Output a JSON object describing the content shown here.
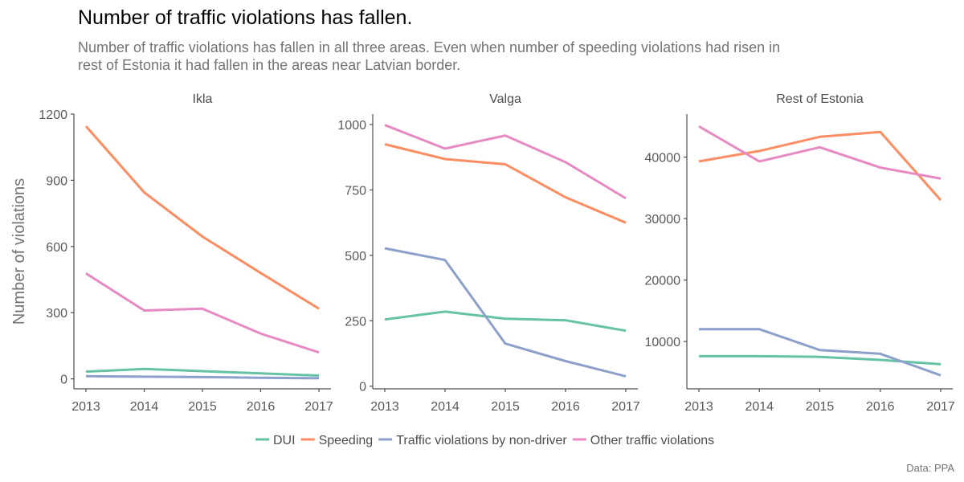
{
  "header": {
    "title": "Number of traffic violations has fallen.",
    "subtitle_lines": [
      "Number of traffic violations has fallen in all three areas. Even when number of speeding violations had risen in",
      "rest of Estonia it had fallen in the areas near Latvian border."
    ]
  },
  "caption": "Data: PPA",
  "colors": {
    "DUI": "#66c2a5",
    "Speeding": "#fc8d62",
    "Traffic violations by non-driver": "#8da0cb",
    "Other traffic violations": "#e78ac3"
  },
  "chart_data": {
    "type": "line",
    "ylabel": "Number of violations",
    "x": [
      2013,
      2014,
      2015,
      2016,
      2017
    ],
    "legend_position": "bottom",
    "legend": [
      "DUI",
      "Speeding",
      "Traffic violations by non-driver",
      "Other traffic violations"
    ],
    "facets": [
      {
        "name": "Ikla",
        "ylim": [
          -45,
          1200
        ],
        "yticks": [
          0,
          300,
          600,
          900,
          1200
        ],
        "series": [
          {
            "name": "DUI",
            "values": [
              33,
              45,
              35,
              25,
              15
            ]
          },
          {
            "name": "Speeding",
            "values": [
              1145,
              845,
              645,
              480,
              318
            ]
          },
          {
            "name": "Traffic violations by non-driver",
            "values": [
              12,
              10,
              8,
              5,
              3
            ]
          },
          {
            "name": "Other traffic violations",
            "values": [
              478,
              310,
              318,
              205,
              120
            ]
          }
        ]
      },
      {
        "name": "Valga",
        "ylim": [
          -10,
          1040
        ],
        "yticks": [
          0,
          250,
          500,
          750,
          1000
        ],
        "series": [
          {
            "name": "DUI",
            "values": [
              255,
              285,
              258,
              252,
              212
            ]
          },
          {
            "name": "Speeding",
            "values": [
              925,
              868,
              848,
              722,
              625
            ]
          },
          {
            "name": "Traffic violations by non-driver",
            "values": [
              527,
              482,
              163,
              96,
              38
            ]
          },
          {
            "name": "Other traffic violations",
            "values": [
              998,
              908,
              958,
              856,
              718
            ]
          }
        ]
      },
      {
        "name": "Rest of Estonia",
        "ylim": [
          2300,
          47000
        ],
        "yticks": [
          10000,
          20000,
          30000,
          40000
        ],
        "series": [
          {
            "name": "DUI",
            "values": [
              7600,
              7600,
              7500,
              7000,
              6300
            ]
          },
          {
            "name": "Speeding",
            "values": [
              39300,
              41000,
              43300,
              44100,
              33000
            ]
          },
          {
            "name": "Traffic violations by non-driver",
            "values": [
              12000,
              12000,
              8600,
              8000,
              4500
            ]
          },
          {
            "name": "Other traffic violations",
            "values": [
              45000,
              39300,
              41600,
              38300,
              36500
            ]
          }
        ]
      }
    ]
  }
}
